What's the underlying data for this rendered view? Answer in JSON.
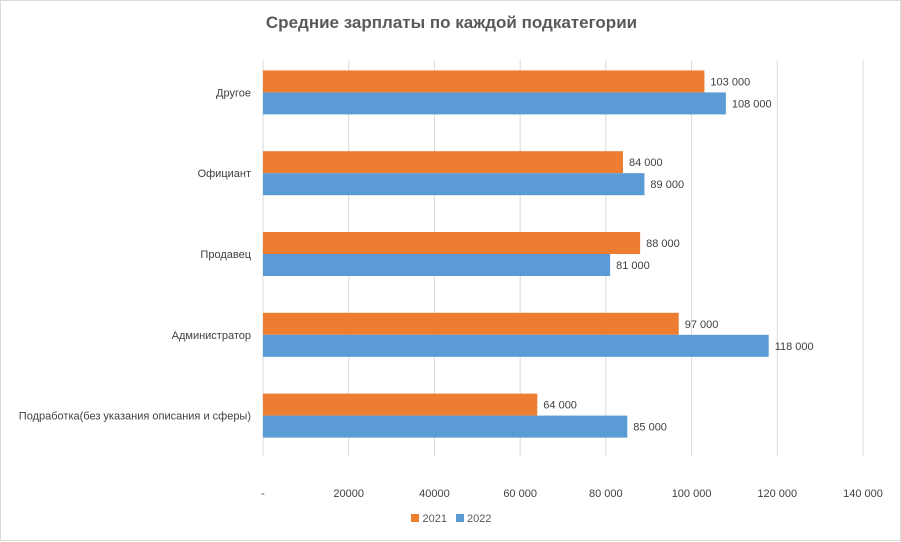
{
  "chart_data": {
    "type": "bar",
    "orientation": "horizontal",
    "title": "Средние зарплаты по каждой подкатегории",
    "categories": [
      "Другое",
      "Официант",
      "Продавец",
      "Администратор",
      "Подработка(без указания описания и сферы)"
    ],
    "series": [
      {
        "name": "2021",
        "color": "#ED7D31",
        "values": [
          103000,
          84000,
          88000,
          97000,
          64000
        ],
        "labels": [
          "103 000",
          "84 000",
          "88 000",
          "97 000",
          "64 000"
        ]
      },
      {
        "name": "2022",
        "color": "#5B9BD5",
        "values": [
          108000,
          89000,
          81000,
          118000,
          85000
        ],
        "labels": [
          "108 000",
          "89 000",
          "81 000",
          "118 000",
          "85 000"
        ]
      }
    ],
    "xlim": [
      0,
      140000
    ],
    "xticks": [
      0,
      20000,
      40000,
      60000,
      80000,
      100000,
      120000,
      140000
    ],
    "xtick_labels": [
      "-",
      "20000",
      "40000",
      "60 000",
      "80 000",
      "100 000",
      "120 000",
      "140 000"
    ],
    "grid": true,
    "legend": "bottom"
  }
}
